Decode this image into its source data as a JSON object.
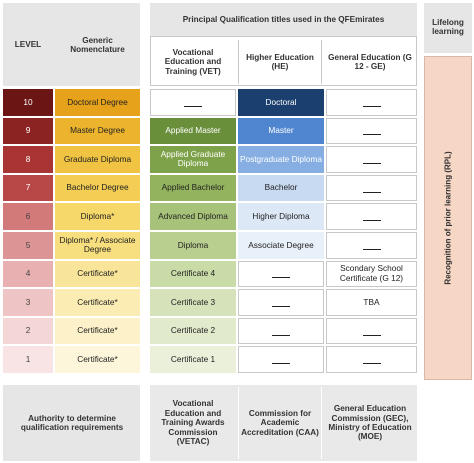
{
  "header": {
    "level": "LEVEL",
    "generic_nomenclature": "Generic Nomenclature",
    "principal_titles": "Principal Qualification titles used in the QFEmirates",
    "lifelong_learning": "Lifelong learning",
    "vet": "Vocational Education and Training (VET)",
    "he": "Higher Education (HE)",
    "ge": "General Education (G 12 - GE)"
  },
  "rows": [
    {
      "level": "10",
      "generic": "Doctoral Degree",
      "vet": "",
      "he": "Doctoral",
      "ge": ""
    },
    {
      "level": "9",
      "generic": "Master Degree",
      "vet": "Applied Master",
      "he": "Master",
      "ge": ""
    },
    {
      "level": "8",
      "generic": "Graduate Diploma",
      "vet": "Applied Graduate Diploma",
      "he": "Postgraduate Diploma",
      "ge": ""
    },
    {
      "level": "7",
      "generic": "Bachelor Degree",
      "vet": "Applied Bachelor",
      "he": "Bachelor",
      "ge": ""
    },
    {
      "level": "6",
      "generic": "Diploma*",
      "vet": "Advanced Diploma",
      "he": "Higher Diploma",
      "ge": ""
    },
    {
      "level": "5",
      "generic": "Diploma* / Associate Degree",
      "vet": "Diploma",
      "he": "Associate Degree",
      "ge": ""
    },
    {
      "level": "4",
      "generic": "Certificate*",
      "vet": "Certificate 4",
      "he": "",
      "ge": "Scondary School Certificate (G 12)"
    },
    {
      "level": "3",
      "generic": "Certificate*",
      "vet": "Certificate 3",
      "he": "",
      "ge": "TBA"
    },
    {
      "level": "2",
      "generic": "Certificate*",
      "vet": "Certificate 2",
      "he": "",
      "ge": ""
    },
    {
      "level": "1",
      "generic": "Certificate*",
      "vet": "Certificate 1",
      "he": "",
      "ge": ""
    }
  ],
  "rpl": "Recognition of prior learning (RPL)",
  "footer": {
    "authority": "Authority to determine qualification requirements",
    "vetac": "Vocational Education and Training Awards Commission (VETAC)",
    "caa": "Commission for Academic Accreditation (CAA)",
    "gec": "General Education Commission (GEC), Ministry of Education (MOE)"
  },
  "colors": {
    "level": [
      "#6b1515",
      "#8c2323",
      "#a83434",
      "#b84848",
      "#d27a7a",
      "#dc9494",
      "#e8b0b0",
      "#efc4c4",
      "#f4d6d6",
      "#f8e4e4"
    ],
    "generic": [
      "#e6a21a",
      "#ecb42c",
      "#f0c442",
      "#f3cd54",
      "#f5d76a",
      "#f7de7e",
      "#f9e59a",
      "#fbecb4",
      "#fcf1c8",
      "#fdf6da"
    ],
    "vet": [
      "#ffffff",
      "#6a8f3b",
      "#7ea24a",
      "#93b35e",
      "#a7c279",
      "#b9cf8f",
      "#c9dba7",
      "#d6e3ba",
      "#e1eacb",
      "#eaf0da"
    ],
    "he": [
      "#1b3f6e",
      "#4f86cf",
      "#86aee3",
      "#c8daf1",
      "#dde8f6",
      "#e8f0fa",
      "#ffffff",
      "#ffffff",
      "#ffffff",
      "#ffffff"
    ],
    "he_text": [
      "#ffffff",
      "#ffffff",
      "#ffffff",
      "#222222",
      "#222222",
      "#222222",
      "#222222",
      "#222222",
      "#222222",
      "#222222"
    ],
    "vet_text": [
      "#222222",
      "#ffffff",
      "#ffffff",
      "#222222",
      "#222222",
      "#222222",
      "#222222",
      "#222222",
      "#222222",
      "#222222"
    ]
  }
}
